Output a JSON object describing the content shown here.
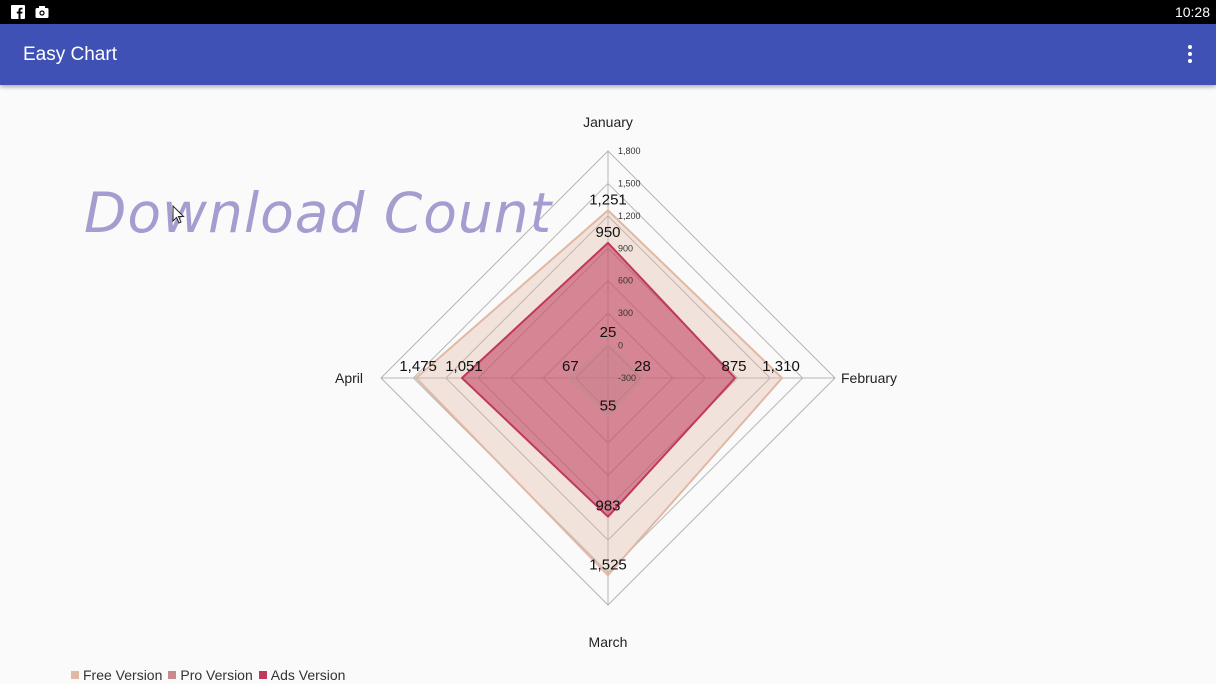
{
  "status_bar": {
    "time": "10:28",
    "icons": [
      "facebook-icon",
      "camera-icon"
    ]
  },
  "app_bar": {
    "title": "Easy Chart",
    "overflow_icon": "more-vert-icon"
  },
  "colors": {
    "app_bar": "#3f51b5",
    "free": "#e0b8a4",
    "pro": "#c98a8f",
    "ads": "#c0395b",
    "title": "#a59ccf"
  },
  "chart_data": {
    "type": "radar",
    "title": "Download Count",
    "categories": [
      "January",
      "February",
      "March",
      "April"
    ],
    "range": [
      -300,
      1800
    ],
    "ticks": [
      -300,
      0,
      300,
      600,
      900,
      1200,
      1500,
      1800
    ],
    "tick_labels": [
      "-300",
      "0",
      "300",
      "600",
      "900",
      "1,200",
      "1,500",
      "1,800"
    ],
    "series": [
      {
        "name": "Free Version",
        "values": [
          1251,
          1310,
          1525,
          1475
        ],
        "labels": [
          "1,251",
          "1,310",
          "1,525",
          "1,475"
        ],
        "color": "#e0b8a4"
      },
      {
        "name": "Pro Version",
        "values": [
          25,
          28,
          55,
          67
        ],
        "labels": [
          "25",
          "28",
          "55",
          "67"
        ],
        "color": "#c98a8f"
      },
      {
        "name": "Ads Version",
        "values": [
          950,
          875,
          983,
          1051
        ],
        "labels": [
          "950",
          "875",
          "983",
          "1,051"
        ],
        "color": "#c0395b"
      }
    ],
    "legend_position": "bottom-left"
  }
}
